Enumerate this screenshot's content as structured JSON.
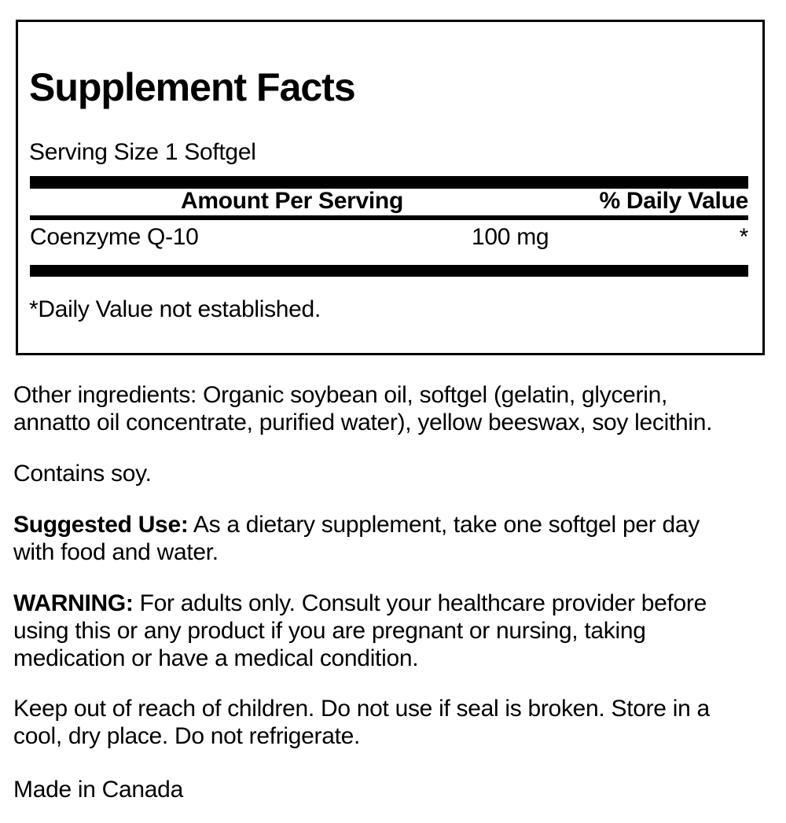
{
  "panel": {
    "title": "Supplement Facts",
    "serving_size": "Serving Size 1 Softgel",
    "columns": {
      "amount": "Amount Per Serving",
      "daily_value": "% Daily Value"
    },
    "rows": [
      {
        "name": "Coenzyme Q-10",
        "amount": "100 mg",
        "daily_value": "*"
      }
    ],
    "footnote": "*Daily Value not established."
  },
  "sections": {
    "other_ingredients": {
      "text": "Other ingredients: Organic soybean oil, softgel (gelatin, glycerin,\nannatto oil concentrate, purified water), yellow beeswax, soy lecithin."
    },
    "allergen": {
      "text": "Contains soy."
    },
    "suggested_use": {
      "label": "Suggested Use:",
      "text": " As a dietary supplement, take one softgel per day\nwith food and water."
    },
    "warning": {
      "label": "WARNING:",
      "text": " For adults only. Consult your healthcare provider before\nusing this or any product if you are pregnant or nursing, taking\nmedication or have a medical condition."
    },
    "storage": {
      "text": "Keep out of reach of children. Do not use if seal is broken. Store in a\ncool, dry place. Do not refrigerate."
    },
    "origin": {
      "text": "Made in Canada"
    }
  },
  "colors": {
    "text": "#000000",
    "background": "#ffffff",
    "rule": "#000000"
  }
}
